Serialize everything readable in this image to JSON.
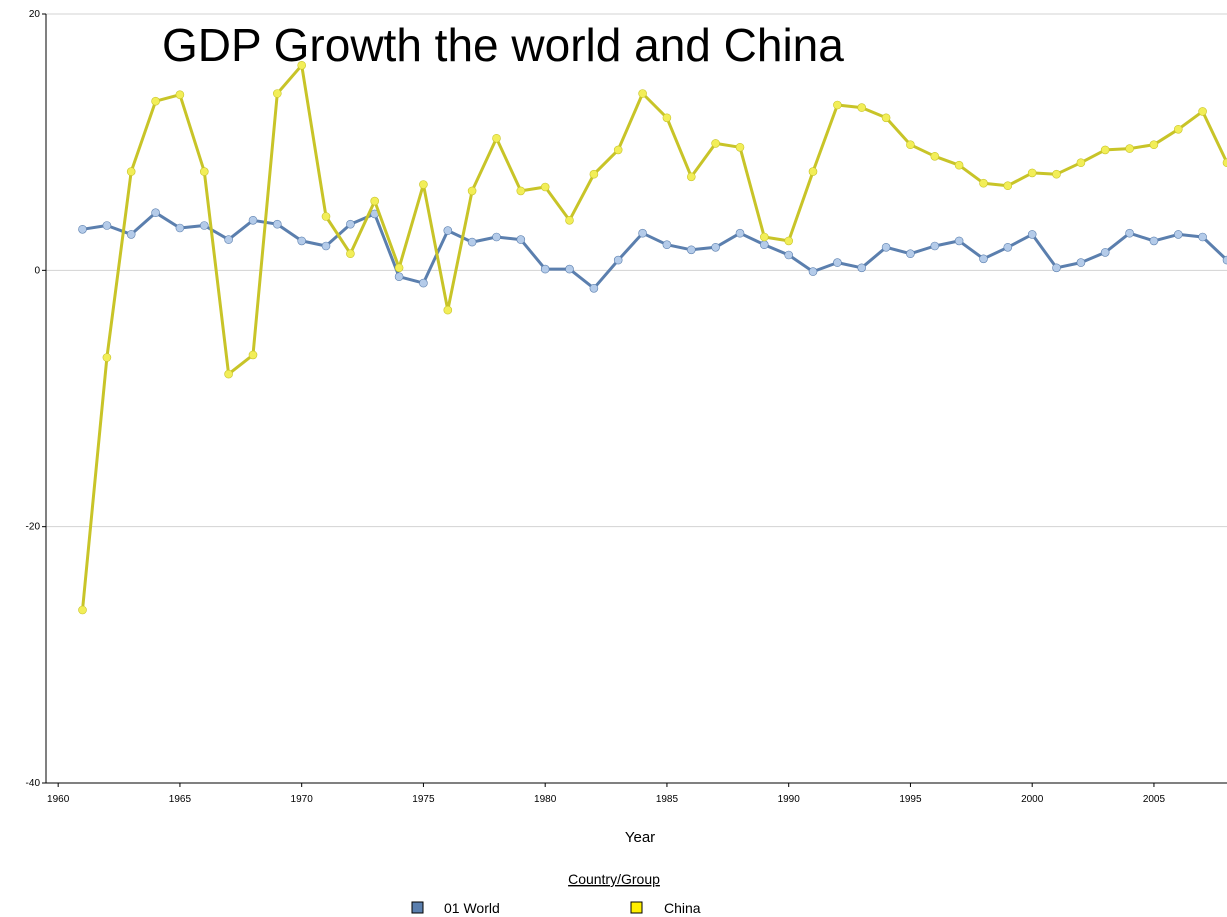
{
  "chart_data": {
    "type": "line",
    "title": "GDP Growth the world and China",
    "xlabel": "Year",
    "ylabel": "",
    "xlim": [
      1959.5,
      2008
    ],
    "ylim": [
      -40,
      20
    ],
    "x_ticks": [
      "1960",
      "1965",
      "1970",
      "1975",
      "1980",
      "1985",
      "1990",
      "1995",
      "2000",
      "2005"
    ],
    "y_ticks": [
      "20",
      "0",
      "-20",
      "-40"
    ],
    "grid": true,
    "legend": {
      "title": "Country/Group",
      "placement": "bottom-center"
    },
    "x": [
      1961,
      1962,
      1963,
      1964,
      1965,
      1966,
      1967,
      1968,
      1969,
      1970,
      1971,
      1972,
      1973,
      1974,
      1975,
      1976,
      1977,
      1978,
      1979,
      1980,
      1981,
      1982,
      1983,
      1984,
      1985,
      1986,
      1987,
      1988,
      1989,
      1990,
      1991,
      1992,
      1993,
      1994,
      1995,
      1996,
      1997,
      1998,
      1999,
      2000,
      2001,
      2002,
      2003,
      2004,
      2005,
      2006,
      2007,
      2008
    ],
    "series": [
      {
        "name": "01  World",
        "color": "#5b7fae",
        "marker_color": "#b4cbe9",
        "values": [
          3.2,
          3.5,
          2.8,
          4.5,
          3.3,
          3.5,
          2.4,
          3.9,
          3.6,
          2.3,
          1.9,
          3.6,
          4.4,
          -0.5,
          -1.0,
          3.1,
          2.2,
          2.6,
          2.4,
          0.1,
          0.1,
          -1.4,
          0.8,
          2.9,
          2.0,
          1.6,
          1.8,
          2.9,
          2.0,
          1.2,
          -0.1,
          0.6,
          0.2,
          1.8,
          1.3,
          1.9,
          2.3,
          0.9,
          1.8,
          2.8,
          0.2,
          0.6,
          1.4,
          2.9,
          2.3,
          2.8,
          2.6,
          0.8
        ]
      },
      {
        "name": "China",
        "color": "#c8c428",
        "marker_color": "#f2ee58",
        "values": [
          -26.5,
          -6.8,
          7.7,
          13.2,
          13.7,
          7.7,
          -8.1,
          -6.6,
          13.8,
          16.0,
          4.2,
          1.3,
          5.4,
          0.2,
          6.7,
          -3.1,
          6.2,
          10.3,
          6.2,
          6.5,
          3.9,
          7.5,
          9.4,
          13.8,
          11.9,
          7.3,
          9.9,
          9.6,
          2.6,
          2.3,
          7.7,
          12.9,
          12.7,
          11.9,
          9.8,
          8.9,
          8.2,
          6.8,
          6.6,
          7.6,
          7.5,
          8.4,
          9.4,
          9.5,
          9.8,
          11.0,
          12.4,
          8.4
        ]
      }
    ]
  }
}
